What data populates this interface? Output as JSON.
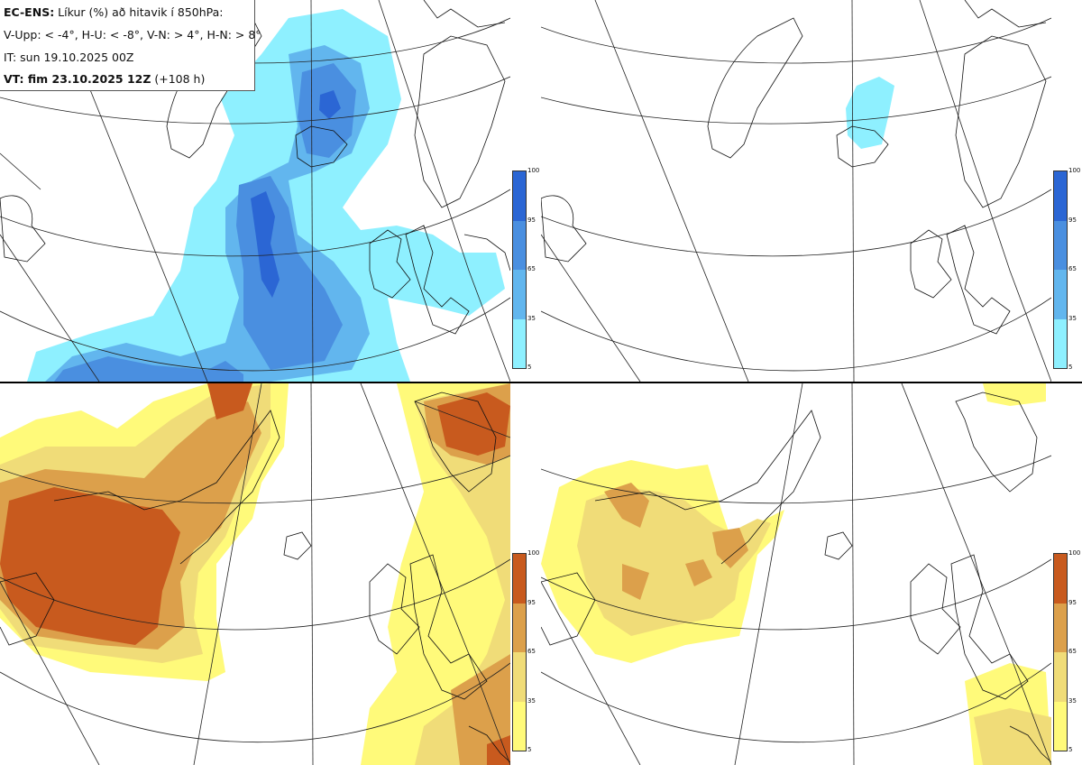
{
  "header": {
    "line1_bold": "EC-ENS:",
    "line1_rest": " Líkur (%) að hitavik í 850hPa:",
    "line2": "V-Upp: < -4°, H-U: < -8°, V-N: > 4°, H-N: > 8°",
    "line3": "IT: sun 19.10.2025 00Z",
    "line4_bold": "VT: fim 23.10.2025 12Z",
    "line4_rest": " (+108 h)"
  },
  "panels": [
    {
      "id": "V-Upp",
      "palette": "blue"
    },
    {
      "id": "H-U",
      "palette": "blue"
    },
    {
      "id": "V-N",
      "palette": "warm"
    },
    {
      "id": "H-N",
      "palette": "warm"
    }
  ],
  "colorbar": {
    "ticks": [
      "100",
      "95",
      "65",
      "35",
      "5"
    ],
    "blue_colors": [
      "#2b66d4",
      "#4a8fe0",
      "#62b6ee",
      "#8ef0ff"
    ],
    "warm_colors": [
      "#c85a1e",
      "#dca04b",
      "#f0dc78",
      "#fffa7a"
    ]
  }
}
